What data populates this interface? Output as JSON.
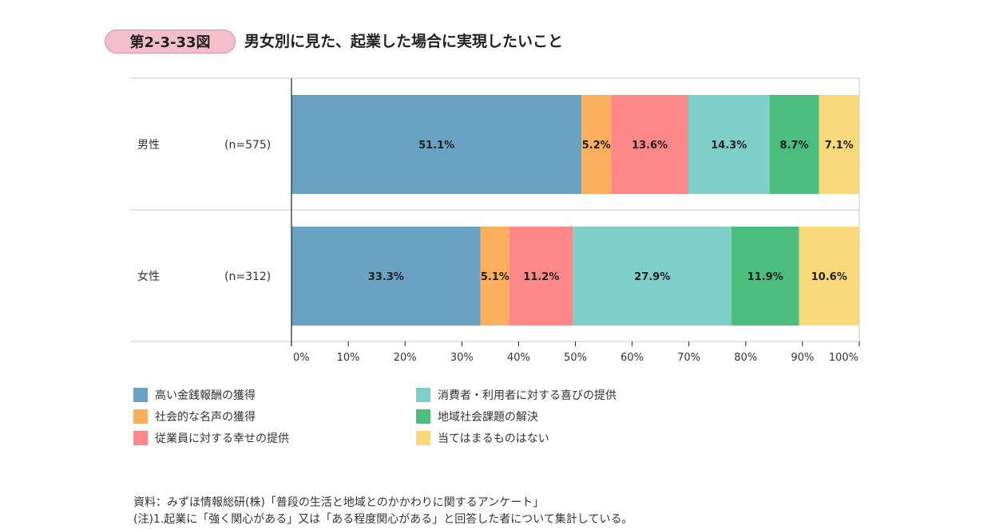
{
  "header": {
    "figure_number": "第2-3-33図",
    "title": "男女別に見た、起業した場合に実現したいこと"
  },
  "chart_data": {
    "type": "bar",
    "orientation": "horizontal",
    "stacked": true,
    "categories": [
      "男性",
      "女性"
    ],
    "sample_sizes": [
      "(n=575)",
      "(n=312)"
    ],
    "series": [
      {
        "name": "高い金銭報酬の獲得",
        "color": "#6aa2c4",
        "values": [
          51.1,
          33.3
        ]
      },
      {
        "name": "社会的な名声の獲得",
        "color": "#fbaf5d",
        "values": [
          5.2,
          5.1
        ]
      },
      {
        "name": "従業員に対する幸せの提供",
        "color": "#fc8888",
        "values": [
          13.6,
          11.2
        ]
      },
      {
        "name": "消費者・利用者に対する喜びの提供",
        "color": "#7ecfc8",
        "values": [
          14.3,
          27.9
        ]
      },
      {
        "name": "地域社会課題の解決",
        "color": "#4bbd7f",
        "values": [
          8.7,
          11.9
        ]
      },
      {
        "name": "当てはまるものはない",
        "color": "#f9d97a",
        "values": [
          7.1,
          10.6
        ]
      }
    ],
    "xlim": [
      0,
      100
    ],
    "x_ticks": [
      "0%",
      "10%",
      "20%",
      "30%",
      "40%",
      "50%",
      "60%",
      "70%",
      "80%",
      "90%",
      "100%"
    ],
    "legend_position": "bottom"
  },
  "source": {
    "line1": "資料：みずほ情報総研(株)「普段の生活と地域とのかかわりに関するアンケート」",
    "line2": "(注)1.起業に「強く関心がある」又は「ある程度関心がある」と回答した者について集計している。"
  }
}
